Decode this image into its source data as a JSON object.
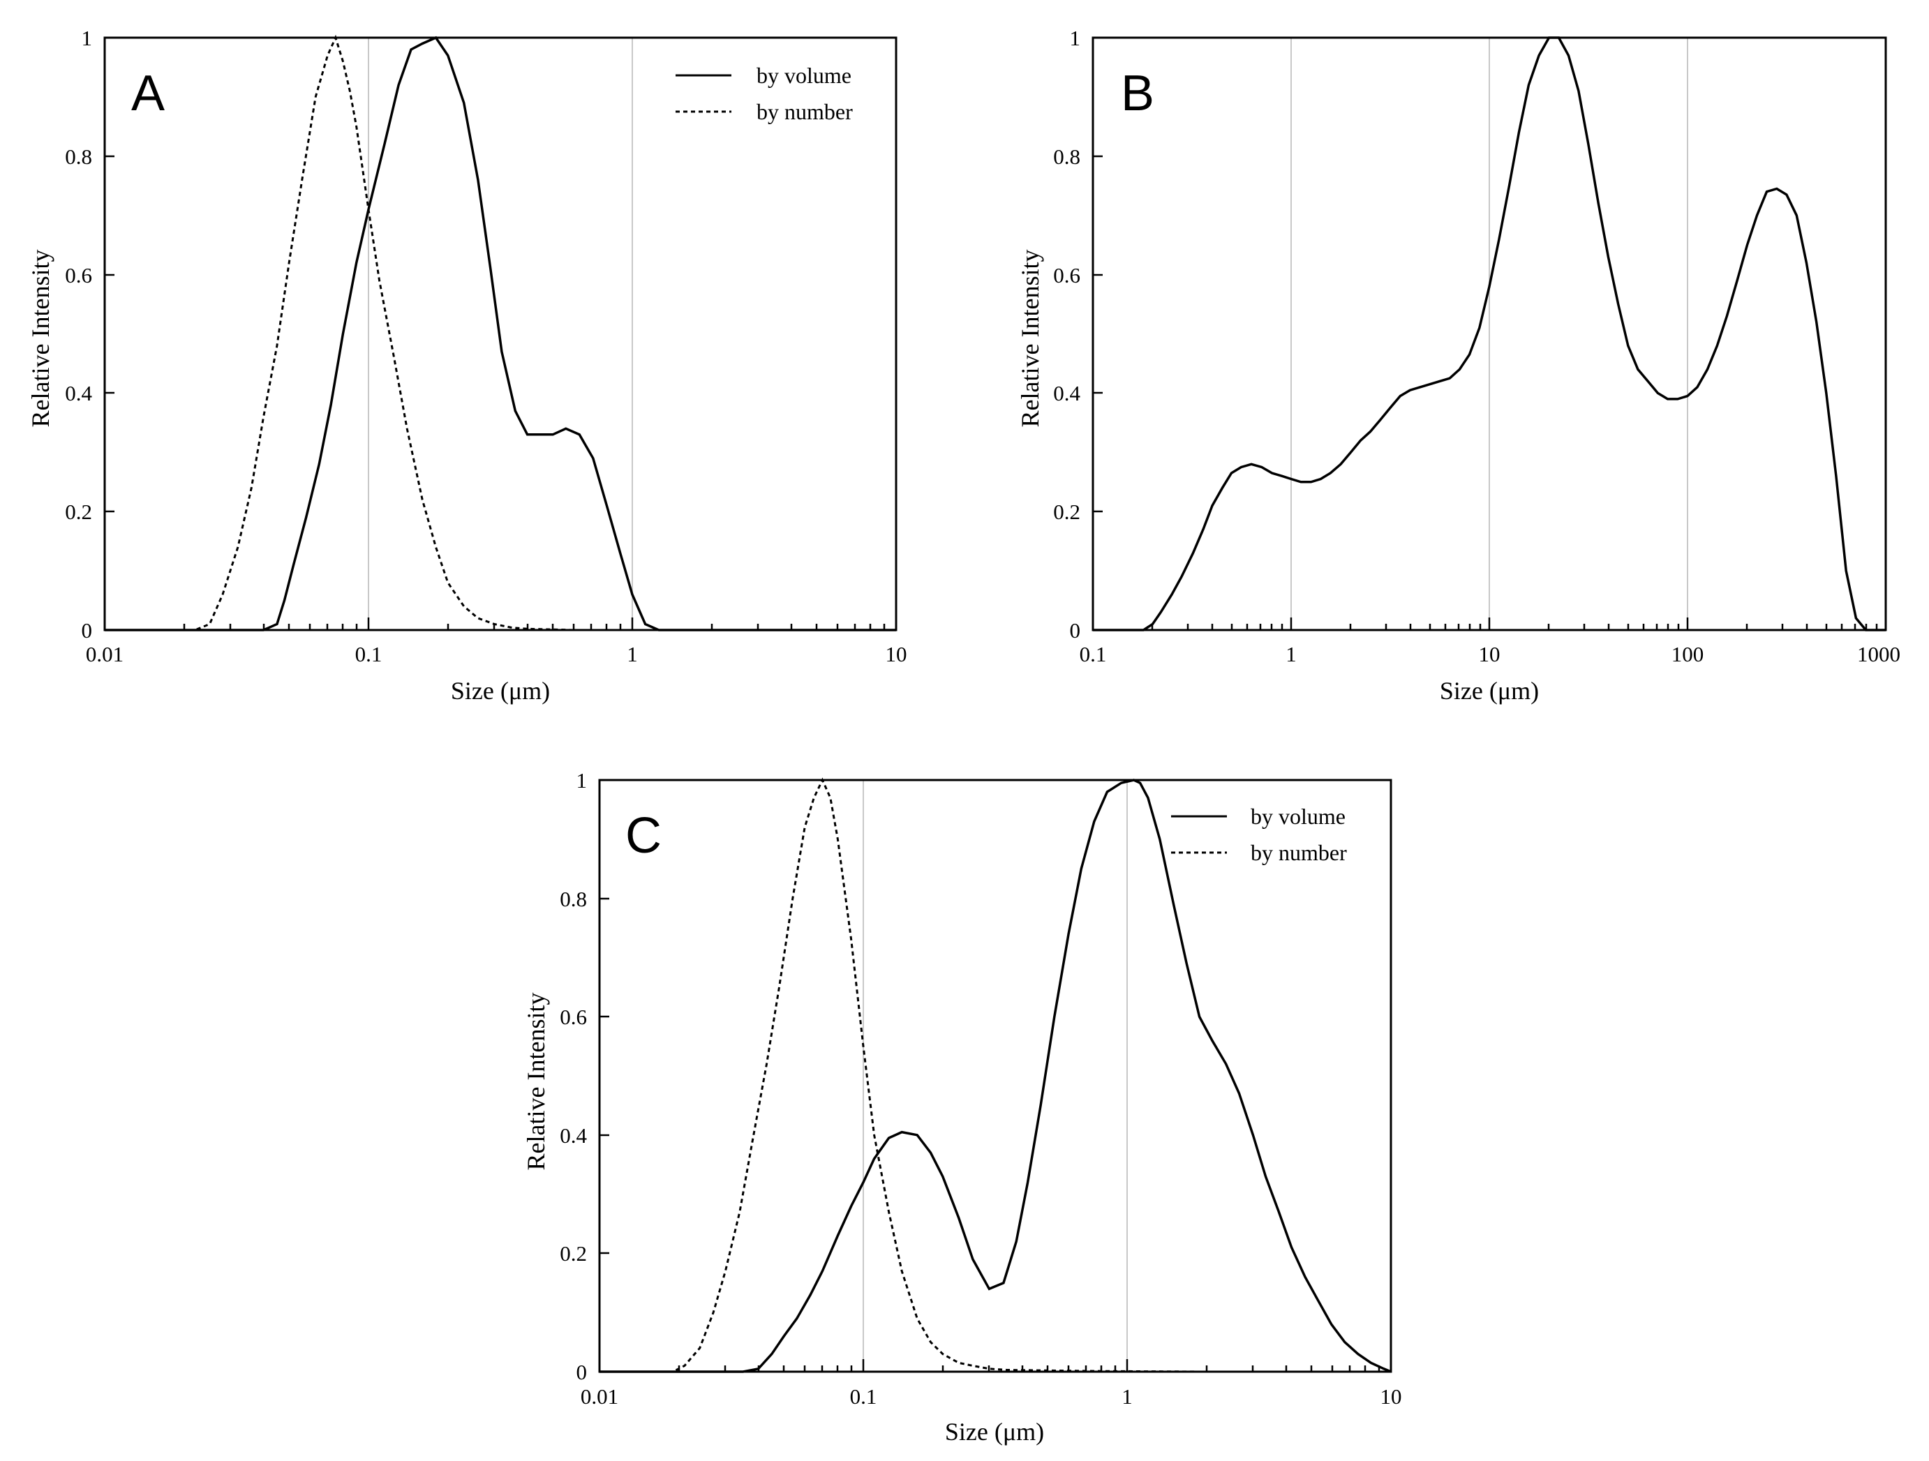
{
  "chart_data": [
    {
      "id": "A",
      "type": "line",
      "panel_label": "A",
      "xscale": "log",
      "xlim": [
        0.01,
        10
      ],
      "ylim": [
        0,
        1
      ],
      "xlabel": "Size (μm)",
      "ylabel": "Relative Intensity",
      "xticks": [
        0.01,
        0.1,
        1,
        10
      ],
      "xtick_labels": [
        "0.01",
        "0.1",
        "1",
        "10"
      ],
      "yticks": [
        0,
        0.2,
        0.4,
        0.6,
        0.8,
        1
      ],
      "ytick_labels": [
        "0",
        "0.2",
        "0.4",
        "0.6",
        "0.8",
        "1"
      ],
      "gridlines_x": [
        0.1,
        1
      ],
      "legend_position": "top-right",
      "series": [
        {
          "name": "by volume",
          "style": "solid",
          "x": [
            0.04,
            0.045,
            0.048,
            0.052,
            0.058,
            0.065,
            0.072,
            0.08,
            0.09,
            0.1,
            0.115,
            0.13,
            0.145,
            0.16,
            0.18,
            0.2,
            0.23,
            0.26,
            0.29,
            0.32,
            0.36,
            0.4,
            0.45,
            0.5,
            0.56,
            0.63,
            0.71,
            0.8,
            0.9,
            1.0,
            1.12,
            1.26,
            1.41,
            1.58,
            1.7
          ],
          "y": [
            0,
            0.01,
            0.05,
            0.11,
            0.19,
            0.28,
            0.38,
            0.5,
            0.62,
            0.71,
            0.82,
            0.92,
            0.98,
            0.99,
            1.0,
            0.97,
            0.89,
            0.76,
            0.61,
            0.47,
            0.37,
            0.33,
            0.33,
            0.33,
            0.34,
            0.33,
            0.29,
            0.21,
            0.13,
            0.06,
            0.01,
            0.0,
            0.0,
            0.0,
            0.0
          ]
        },
        {
          "name": "by number",
          "style": "dotted",
          "x": [
            0.022,
            0.025,
            0.028,
            0.032,
            0.036,
            0.04,
            0.045,
            0.05,
            0.056,
            0.063,
            0.07,
            0.075,
            0.08,
            0.085,
            0.09,
            0.1,
            0.11,
            0.125,
            0.14,
            0.16,
            0.18,
            0.2,
            0.23,
            0.26,
            0.3,
            0.35,
            0.4,
            0.5,
            0.6
          ],
          "y": [
            0,
            0.01,
            0.06,
            0.14,
            0.24,
            0.36,
            0.48,
            0.62,
            0.76,
            0.9,
            0.97,
            1.0,
            0.96,
            0.91,
            0.85,
            0.71,
            0.59,
            0.46,
            0.34,
            0.22,
            0.14,
            0.08,
            0.04,
            0.02,
            0.01,
            0.004,
            0.002,
            0.001,
            0.0
          ]
        }
      ]
    },
    {
      "id": "B",
      "type": "line",
      "panel_label": "B",
      "xscale": "log",
      "xlim": [
        0.1,
        1000
      ],
      "ylim": [
        0,
        1
      ],
      "xlabel": "Size (μm)",
      "ylabel": "Relative Intensity",
      "xticks": [
        0.1,
        1,
        10,
        100,
        1000
      ],
      "xtick_labels": [
        "0.1",
        "1",
        "10",
        "100",
        "1000"
      ],
      "yticks": [
        0,
        0.2,
        0.4,
        0.6,
        0.8,
        1
      ],
      "ytick_labels": [
        "0",
        "0.2",
        "0.4",
        "0.6",
        "0.8",
        "1"
      ],
      "gridlines_x": [
        1,
        10,
        100
      ],
      "legend_position": "none",
      "series": [
        {
          "name": "by volume",
          "style": "solid",
          "x": [
            0.18,
            0.2,
            0.22,
            0.25,
            0.28,
            0.32,
            0.36,
            0.4,
            0.45,
            0.5,
            0.56,
            0.63,
            0.71,
            0.8,
            0.9,
            1.0,
            1.12,
            1.26,
            1.41,
            1.58,
            1.78,
            2.0,
            2.24,
            2.51,
            2.82,
            3.16,
            3.55,
            3.98,
            4.47,
            5.01,
            5.62,
            6.31,
            7.08,
            7.94,
            8.91,
            10.0,
            11.2,
            12.6,
            14.1,
            15.8,
            17.8,
            20.0,
            22.4,
            25.1,
            28.2,
            31.6,
            35.5,
            39.8,
            44.7,
            50.1,
            56.2,
            63.1,
            70.8,
            79.4,
            89.1,
            100,
            112,
            126,
            141,
            158,
            178,
            200,
            224,
            251,
            282,
            316,
            355,
            398,
            447,
            501,
            562,
            631,
            708,
            794
          ],
          "y": [
            0,
            0.01,
            0.03,
            0.06,
            0.09,
            0.13,
            0.17,
            0.21,
            0.24,
            0.265,
            0.275,
            0.28,
            0.275,
            0.265,
            0.26,
            0.255,
            0.25,
            0.25,
            0.255,
            0.265,
            0.28,
            0.3,
            0.32,
            0.335,
            0.355,
            0.375,
            0.395,
            0.405,
            0.41,
            0.415,
            0.42,
            0.425,
            0.44,
            0.465,
            0.51,
            0.58,
            0.66,
            0.75,
            0.84,
            0.92,
            0.97,
            1.0,
            1.0,
            0.97,
            0.91,
            0.82,
            0.72,
            0.63,
            0.55,
            0.48,
            0.44,
            0.42,
            0.4,
            0.39,
            0.39,
            0.395,
            0.41,
            0.44,
            0.48,
            0.53,
            0.59,
            0.65,
            0.7,
            0.74,
            0.745,
            0.735,
            0.7,
            0.62,
            0.52,
            0.4,
            0.26,
            0.1,
            0.02,
            0.0
          ]
        }
      ]
    },
    {
      "id": "C",
      "type": "line",
      "panel_label": "C",
      "xscale": "log",
      "xlim": [
        0.01,
        10
      ],
      "ylim": [
        0,
        1
      ],
      "xlabel": "Size (μm)",
      "ylabel": "Relative Intensity",
      "xticks": [
        0.01,
        0.1,
        1,
        10
      ],
      "xtick_labels": [
        "0.01",
        "0.1",
        "1",
        "10"
      ],
      "yticks": [
        0,
        0.2,
        0.4,
        0.6,
        0.8,
        1
      ],
      "ytick_labels": [
        "0",
        "0.2",
        "0.4",
        "0.6",
        "0.8",
        "1"
      ],
      "gridlines_x": [
        0.1,
        1
      ],
      "legend_position": "top-right",
      "series": [
        {
          "name": "by volume",
          "style": "solid",
          "x": [
            0.035,
            0.04,
            0.045,
            0.05,
            0.056,
            0.063,
            0.07,
            0.08,
            0.09,
            0.1,
            0.11,
            0.125,
            0.14,
            0.16,
            0.18,
            0.2,
            0.23,
            0.26,
            0.3,
            0.34,
            0.38,
            0.42,
            0.47,
            0.53,
            0.6,
            0.67,
            0.75,
            0.84,
            0.95,
            1.06,
            1.12,
            1.2,
            1.33,
            1.5,
            1.68,
            1.88,
            2.1,
            2.37,
            2.66,
            3.0,
            3.35,
            3.76,
            4.2,
            4.73,
            5.3,
            5.95,
            6.68,
            7.5,
            8.4,
            9.4,
            10
          ],
          "y": [
            0,
            0.005,
            0.03,
            0.06,
            0.09,
            0.13,
            0.17,
            0.23,
            0.28,
            0.32,
            0.36,
            0.395,
            0.405,
            0.4,
            0.37,
            0.33,
            0.26,
            0.19,
            0.14,
            0.15,
            0.22,
            0.32,
            0.45,
            0.6,
            0.74,
            0.85,
            0.93,
            0.98,
            0.995,
            1.0,
            0.995,
            0.97,
            0.9,
            0.79,
            0.69,
            0.6,
            0.56,
            0.52,
            0.47,
            0.4,
            0.33,
            0.27,
            0.21,
            0.16,
            0.12,
            0.08,
            0.05,
            0.03,
            0.015,
            0.005,
            0.0
          ]
        },
        {
          "name": "by number",
          "style": "dotted",
          "x": [
            0.019,
            0.021,
            0.024,
            0.027,
            0.03,
            0.034,
            0.038,
            0.043,
            0.048,
            0.054,
            0.06,
            0.065,
            0.07,
            0.075,
            0.08,
            0.09,
            0.1,
            0.11,
            0.125,
            0.14,
            0.16,
            0.18,
            0.2,
            0.23,
            0.26,
            0.3,
            0.35,
            0.5,
            0.8,
            1.2,
            2
          ],
          "y": [
            0,
            0.01,
            0.04,
            0.1,
            0.17,
            0.27,
            0.39,
            0.52,
            0.65,
            0.8,
            0.92,
            0.97,
            1.0,
            0.97,
            0.9,
            0.73,
            0.55,
            0.4,
            0.27,
            0.17,
            0.09,
            0.05,
            0.03,
            0.015,
            0.01,
            0.005,
            0.003,
            0.002,
            0.001,
            0.0005,
            0.0
          ]
        }
      ]
    }
  ]
}
